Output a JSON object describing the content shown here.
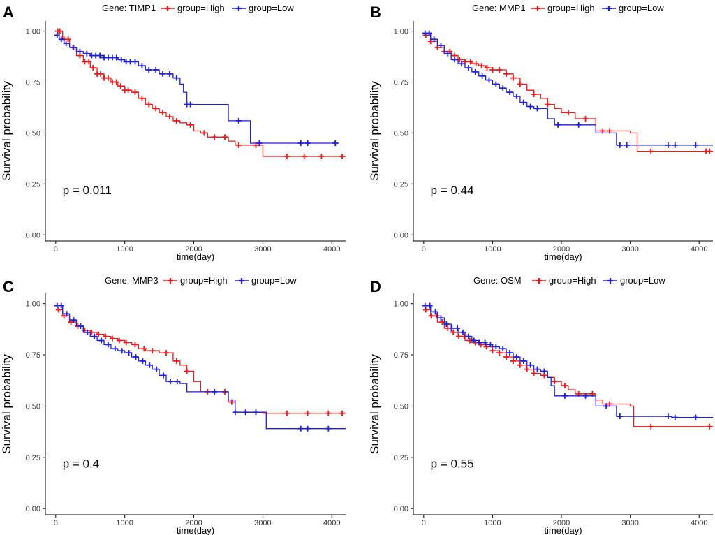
{
  "colors": {
    "high": "#e8191b",
    "low": "#1f1fd6",
    "axis": "#000000"
  },
  "chart_data": [
    {
      "type": "line",
      "panel": "A",
      "gene_label": "Gene: TIMP1",
      "legend": [
        "group=High",
        "group=Low"
      ],
      "ylabel": "Survival probability",
      "xlabel": "time(day)",
      "p_value_text": "p = 0.011",
      "xlim": [
        -150,
        4200
      ],
      "ylim": [
        -0.03,
        1.05
      ],
      "xticks": [
        0,
        1000,
        2000,
        3000,
        4000
      ],
      "xtick_labels": [
        "0",
        "1000",
        "2000",
        "3000",
        "4000"
      ],
      "yticks": [
        0,
        0.25,
        0.5,
        0.75,
        1.0
      ],
      "ytick_labels": [
        "0.00",
        "0.25",
        "0.50",
        "0.75",
        "1.00"
      ],
      "series": [
        {
          "name": "group=High",
          "x": [
            0,
            100,
            200,
            300,
            400,
            500,
            600,
            700,
            800,
            900,
            1000,
            1100,
            1200,
            1300,
            1400,
            1500,
            1600,
            1700,
            1800,
            1900,
            2000,
            2100,
            2200,
            2400,
            2500,
            2600,
            2800,
            3000,
            4200
          ],
          "y": [
            1.0,
            0.96,
            0.92,
            0.88,
            0.85,
            0.82,
            0.79,
            0.77,
            0.75,
            0.73,
            0.71,
            0.7,
            0.67,
            0.64,
            0.62,
            0.6,
            0.58,
            0.56,
            0.55,
            0.54,
            0.51,
            0.5,
            0.48,
            0.48,
            0.46,
            0.44,
            0.44,
            0.385,
            0.385
          ],
          "censor_x": [
            30,
            60,
            120,
            180,
            260,
            350,
            420,
            480,
            540,
            600,
            650,
            700,
            760,
            820,
            880,
            940,
            1000,
            1050,
            1150,
            1250,
            1350,
            1450,
            1550,
            1650,
            1750,
            1950,
            2150,
            2300,
            2450,
            2650,
            2900,
            3350,
            3600,
            3850,
            4150
          ]
        },
        {
          "name": "group=Low",
          "x": [
            0,
            50,
            120,
            200,
            300,
            400,
            500,
            700,
            900,
            1000,
            1200,
            1300,
            1500,
            1700,
            1800,
            1850,
            1900,
            2500,
            2600,
            2800,
            2820,
            4100
          ],
          "y": [
            0.98,
            0.96,
            0.94,
            0.92,
            0.9,
            0.89,
            0.88,
            0.87,
            0.86,
            0.85,
            0.83,
            0.81,
            0.79,
            0.77,
            0.74,
            0.7,
            0.64,
            0.56,
            0.56,
            0.56,
            0.45,
            0.45
          ],
          "censor_x": [
            20,
            80,
            150,
            250,
            350,
            450,
            520,
            580,
            640,
            700,
            760,
            820,
            880,
            950,
            1020,
            1080,
            1150,
            1250,
            1350,
            1450,
            1550,
            1650,
            1750,
            1900,
            1950,
            2650,
            2950,
            3550,
            3650,
            4050
          ]
        }
      ]
    },
    {
      "type": "line",
      "panel": "B",
      "gene_label": "Gene: MMP1",
      "legend": [
        "group=High",
        "group=Low"
      ],
      "ylabel": "Survival probability",
      "xlabel": "time(day)",
      "p_value_text": "p = 0.44",
      "xlim": [
        -150,
        4200
      ],
      "ylim": [
        -0.03,
        1.05
      ],
      "xticks": [
        0,
        1000,
        2000,
        3000,
        4000
      ],
      "xtick_labels": [
        "0",
        "1000",
        "2000",
        "3000",
        "4000"
      ],
      "yticks": [
        0,
        0.25,
        0.5,
        0.75,
        1.0
      ],
      "ytick_labels": [
        "0.00",
        "0.25",
        "0.50",
        "0.75",
        "1.00"
      ],
      "series": [
        {
          "name": "group=High",
          "x": [
            0,
            100,
            200,
            300,
            400,
            500,
            600,
            700,
            800,
            900,
            1000,
            1200,
            1300,
            1400,
            1500,
            1600,
            1700,
            1800,
            1900,
            2000,
            2200,
            2300,
            2500,
            2600,
            3000,
            3100,
            4200
          ],
          "y": [
            0.98,
            0.95,
            0.92,
            0.9,
            0.88,
            0.86,
            0.85,
            0.84,
            0.83,
            0.82,
            0.81,
            0.79,
            0.77,
            0.74,
            0.71,
            0.69,
            0.67,
            0.64,
            0.62,
            0.6,
            0.57,
            0.57,
            0.51,
            0.51,
            0.5,
            0.41,
            0.41
          ],
          "censor_x": [
            30,
            100,
            200,
            300,
            380,
            450,
            520,
            600,
            680,
            760,
            840,
            920,
            1000,
            1100,
            1200,
            1300,
            1400,
            1600,
            1800,
            2100,
            2350,
            2600,
            2700,
            3300,
            4100,
            4150
          ]
        },
        {
          "name": "group=Low",
          "x": [
            0,
            100,
            200,
            300,
            400,
            500,
            600,
            700,
            800,
            900,
            1000,
            1100,
            1200,
            1300,
            1400,
            1500,
            1600,
            1800,
            1900,
            2500,
            2800,
            3600,
            4200
          ],
          "y": [
            0.99,
            0.96,
            0.93,
            0.89,
            0.86,
            0.84,
            0.82,
            0.8,
            0.78,
            0.76,
            0.74,
            0.72,
            0.7,
            0.68,
            0.65,
            0.63,
            0.62,
            0.57,
            0.54,
            0.5,
            0.44,
            0.44,
            0.44
          ],
          "censor_x": [
            20,
            80,
            150,
            250,
            350,
            450,
            550,
            650,
            750,
            850,
            950,
            1050,
            1150,
            1250,
            1350,
            1450,
            1550,
            1650,
            1950,
            2250,
            2850,
            2950,
            3550,
            3650,
            3950
          ]
        }
      ]
    },
    {
      "type": "line",
      "panel": "C",
      "gene_label": "Gene: MMP3",
      "legend": [
        "group=High",
        "group=Low"
      ],
      "ylabel": "Survival probability",
      "xlabel": "time(day)",
      "p_value_text": "p = 0.4",
      "xlim": [
        -150,
        4200
      ],
      "ylim": [
        -0.03,
        1.05
      ],
      "xticks": [
        0,
        1000,
        2000,
        3000,
        4000
      ],
      "xtick_labels": [
        "0",
        "1000",
        "2000",
        "3000",
        "4000"
      ],
      "yticks": [
        0,
        0.25,
        0.5,
        0.75,
        1.0
      ],
      "ytick_labels": [
        "0.00",
        "0.25",
        "0.50",
        "0.75",
        "1.00"
      ],
      "series": [
        {
          "name": "group=High",
          "x": [
            0,
            100,
            200,
            300,
            400,
            500,
            600,
            700,
            800,
            900,
            1000,
            1100,
            1200,
            1300,
            1500,
            1700,
            1800,
            1900,
            2000,
            2100,
            2500,
            2600,
            3000,
            4200
          ],
          "y": [
            0.97,
            0.94,
            0.91,
            0.89,
            0.87,
            0.86,
            0.85,
            0.84,
            0.83,
            0.82,
            0.81,
            0.8,
            0.78,
            0.77,
            0.76,
            0.72,
            0.7,
            0.67,
            0.62,
            0.57,
            0.52,
            0.47,
            0.465,
            0.465
          ],
          "censor_x": [
            40,
            120,
            220,
            320,
            420,
            520,
            620,
            720,
            820,
            920,
            1020,
            1150,
            1280,
            1400,
            1600,
            1750,
            1900,
            2200,
            2450,
            2550,
            3350,
            3650,
            3950,
            4150
          ]
        },
        {
          "name": "group=Low",
          "x": [
            0,
            100,
            200,
            300,
            400,
            500,
            600,
            700,
            800,
            900,
            1000,
            1100,
            1200,
            1300,
            1400,
            1500,
            1600,
            1700,
            1800,
            1900,
            2500,
            2600,
            3000,
            3050,
            4200
          ],
          "y": [
            0.99,
            0.95,
            0.92,
            0.89,
            0.86,
            0.84,
            0.82,
            0.8,
            0.78,
            0.77,
            0.76,
            0.74,
            0.72,
            0.7,
            0.68,
            0.65,
            0.62,
            0.62,
            0.61,
            0.57,
            0.53,
            0.47,
            0.47,
            0.39,
            0.39
          ],
          "censor_x": [
            20,
            80,
            160,
            260,
            360,
            460,
            560,
            660,
            760,
            860,
            960,
            1060,
            1160,
            1260,
            1360,
            1460,
            1560,
            1660,
            1760,
            2300,
            2600,
            2750,
            2900,
            3550,
            3650,
            3950
          ]
        }
      ]
    },
    {
      "type": "line",
      "panel": "D",
      "gene_label": "Gene: OSM",
      "legend": [
        "group=High",
        "group=Low"
      ],
      "ylabel": "Survival probability",
      "xlabel": "time(day)",
      "p_value_text": "p = 0.55",
      "xlim": [
        -150,
        4200
      ],
      "ylim": [
        -0.03,
        1.05
      ],
      "xticks": [
        0,
        1000,
        2000,
        3000,
        4000
      ],
      "xtick_labels": [
        "0",
        "1000",
        "2000",
        "3000",
        "4000"
      ],
      "yticks": [
        0,
        0.25,
        0.5,
        0.75,
        1.0
      ],
      "ytick_labels": [
        "0.00",
        "0.25",
        "0.50",
        "0.75",
        "1.00"
      ],
      "series": [
        {
          "name": "group=High",
          "x": [
            0,
            100,
            200,
            300,
            400,
            500,
            600,
            700,
            800,
            900,
            1000,
            1100,
            1200,
            1300,
            1400,
            1500,
            1600,
            1700,
            1800,
            1900,
            2000,
            2100,
            2200,
            2500,
            2600,
            2800,
            3000,
            3050,
            4200
          ],
          "y": [
            0.97,
            0.94,
            0.91,
            0.88,
            0.86,
            0.84,
            0.82,
            0.81,
            0.8,
            0.79,
            0.77,
            0.76,
            0.74,
            0.72,
            0.7,
            0.68,
            0.66,
            0.65,
            0.64,
            0.62,
            0.6,
            0.58,
            0.56,
            0.53,
            0.51,
            0.51,
            0.5,
            0.4,
            0.4
          ],
          "censor_x": [
            30,
            110,
            190,
            270,
            350,
            430,
            510,
            590,
            670,
            750,
            830,
            910,
            1000,
            1100,
            1200,
            1300,
            1400,
            1500,
            1600,
            1750,
            1900,
            2050,
            2250,
            2450,
            2700,
            3300,
            4150
          ]
        },
        {
          "name": "group=Low",
          "x": [
            0,
            100,
            200,
            300,
            400,
            500,
            600,
            700,
            800,
            900,
            1000,
            1100,
            1200,
            1300,
            1400,
            1500,
            1600,
            1700,
            1800,
            1850,
            1900,
            2500,
            2800,
            3600,
            4200
          ],
          "y": [
            0.99,
            0.96,
            0.93,
            0.9,
            0.88,
            0.86,
            0.84,
            0.82,
            0.81,
            0.8,
            0.79,
            0.78,
            0.76,
            0.74,
            0.72,
            0.7,
            0.68,
            0.67,
            0.64,
            0.6,
            0.55,
            0.5,
            0.45,
            0.445,
            0.445
          ],
          "censor_x": [
            20,
            90,
            170,
            250,
            330,
            410,
            490,
            570,
            650,
            730,
            810,
            890,
            970,
            1050,
            1150,
            1250,
            1350,
            1450,
            1550,
            1650,
            1750,
            2050,
            2350,
            2650,
            2850,
            3550,
            3650,
            3950
          ]
        }
      ]
    }
  ]
}
